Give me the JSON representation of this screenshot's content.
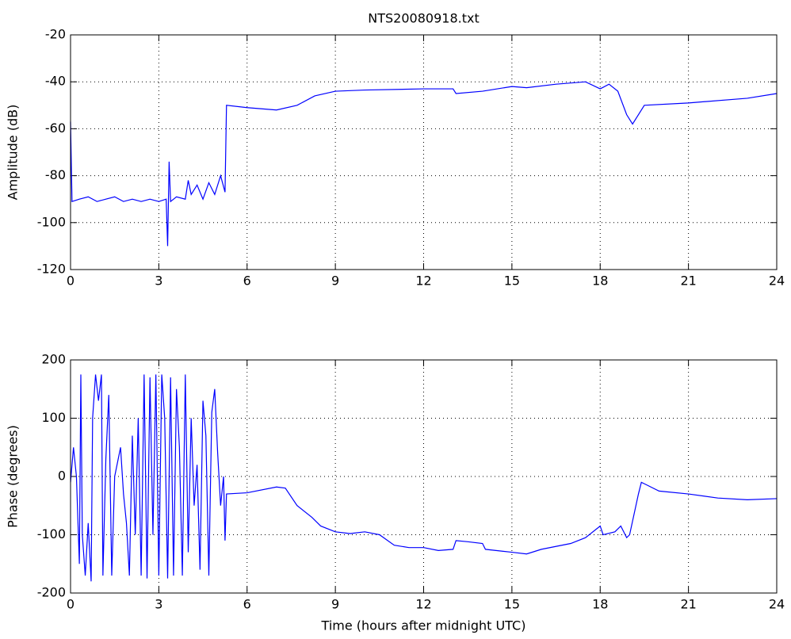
{
  "chart_data": [
    {
      "type": "line",
      "title": "NTS20080918.txt",
      "y_label": "Amplitude (dB)",
      "color": "#0000ff",
      "grid": true,
      "xlim": [
        0,
        24
      ],
      "xticks": [
        0,
        3,
        6,
        9,
        12,
        15,
        18,
        21,
        24
      ],
      "ylim": [
        -120,
        -20
      ],
      "yticks": [
        -120,
        -100,
        -80,
        -60,
        -40,
        -20
      ],
      "x": [
        0,
        0.05,
        0.3,
        0.6,
        0.9,
        1.2,
        1.5,
        1.8,
        2.1,
        2.4,
        2.7,
        3.0,
        3.25,
        3.3,
        3.35,
        3.4,
        3.6,
        3.9,
        4.0,
        4.1,
        4.3,
        4.5,
        4.7,
        4.9,
        5.1,
        5.25,
        5.3,
        6,
        7,
        7.7,
        8.3,
        9,
        10,
        12,
        13,
        13.1,
        14,
        15,
        15.5,
        16.5,
        17.5,
        18,
        18.3,
        18.6,
        18.9,
        19.1,
        19.5,
        21,
        23,
        24
      ],
      "values": [
        -57,
        -91,
        -90,
        -89,
        -91,
        -90,
        -89,
        -91,
        -90,
        -91,
        -90,
        -91,
        -90,
        -110,
        -74,
        -91,
        -89,
        -90,
        -82,
        -88,
        -84,
        -90,
        -83,
        -88,
        -80,
        -87,
        -50,
        -51,
        -52,
        -50,
        -46,
        -44,
        -43.5,
        -43,
        -43,
        -45,
        -44,
        -42,
        -42.5,
        -41,
        -40,
        -43,
        -41,
        -44,
        -54,
        -58,
        -50,
        -49,
        -47,
        -45
      ]
    },
    {
      "type": "line",
      "x_label": "Time (hours after midnight UTC)",
      "y_label": "Phase (degrees)",
      "color": "#0000ff",
      "grid": true,
      "xlim": [
        0,
        24
      ],
      "xticks": [
        0,
        3,
        6,
        9,
        12,
        15,
        18,
        21,
        24
      ],
      "ylim": [
        -200,
        200
      ],
      "yticks": [
        -200,
        -100,
        0,
        100,
        200
      ],
      "x": [
        0,
        0.1,
        0.2,
        0.3,
        0.35,
        0.4,
        0.5,
        0.6,
        0.7,
        0.75,
        0.85,
        0.95,
        1.05,
        1.1,
        1.2,
        1.3,
        1.4,
        1.5,
        1.7,
        1.8,
        1.9,
        2.0,
        2.1,
        2.2,
        2.3,
        2.4,
        2.5,
        2.6,
        2.7,
        2.8,
        2.9,
        3.0,
        3.1,
        3.2,
        3.3,
        3.4,
        3.5,
        3.6,
        3.7,
        3.8,
        3.9,
        4.0,
        4.1,
        4.2,
        4.3,
        4.4,
        4.5,
        4.6,
        4.7,
        4.8,
        4.9,
        5.0,
        5.1,
        5.2,
        5.25,
        5.3,
        6,
        7,
        7.3,
        7.7,
        8.2,
        8.5,
        9,
        9.5,
        10,
        10.5,
        11,
        11.5,
        12,
        12.5,
        13,
        13.1,
        13.5,
        14,
        14.1,
        15,
        15.5,
        16,
        17,
        17.5,
        18,
        18.1,
        18.5,
        18.7,
        18.9,
        19,
        19.3,
        19.4,
        19.6,
        20,
        21,
        22,
        23,
        24
      ],
      "values": [
        -10,
        50,
        0,
        -150,
        175,
        -100,
        -170,
        -80,
        -180,
        100,
        175,
        130,
        175,
        -170,
        30,
        140,
        -170,
        0,
        50,
        -30,
        -80,
        -170,
        70,
        -100,
        100,
        -170,
        175,
        -175,
        170,
        -100,
        175,
        -170,
        175,
        100,
        -175,
        170,
        -170,
        150,
        50,
        -170,
        175,
        -130,
        100,
        -50,
        20,
        -160,
        130,
        70,
        -170,
        110,
        150,
        40,
        -50,
        0,
        -110,
        -30,
        -28,
        -18,
        -20,
        -50,
        -70,
        -85,
        -95,
        -98,
        -95,
        -100,
        -118,
        -122,
        -122,
        -127,
        -125,
        -110,
        -112,
        -115,
        -125,
        -130,
        -133,
        -125,
        -115,
        -105,
        -85,
        -100,
        -95,
        -85,
        -105,
        -100,
        -30,
        -10,
        -15,
        -25,
        -30,
        -37,
        -40,
        -38
      ]
    }
  ]
}
